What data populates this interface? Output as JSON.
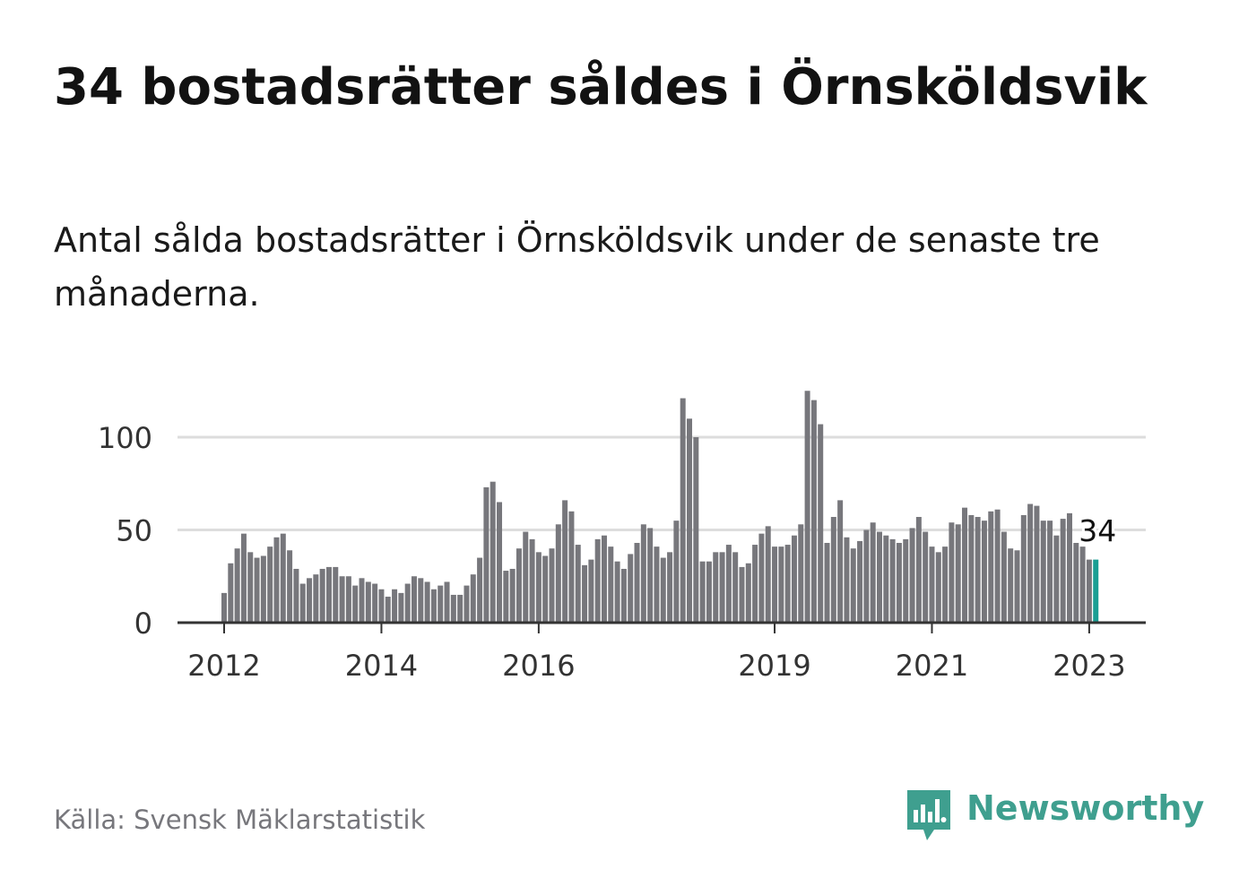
{
  "title": "34 bostadsrätter såldes i Örnsköldsvik",
  "subtitle": "Antal sålda bostadsrätter i Örnsköldsvik under de senaste tre månaderna.",
  "source": "Källa: Svensk Mäklarstatistik",
  "brand": {
    "name": "Newsworthy",
    "logo_icon": "newsworthy-bar-chart-speech-bubble-icon"
  },
  "colors": {
    "bar": "#77777c",
    "highlight": "#1a9e93",
    "grid": "#dddddd",
    "axis": "#333333",
    "brand": "#3f9f8f"
  },
  "chart_data": {
    "type": "bar",
    "x_unit": "month",
    "start": "2012-01",
    "end": "2023-02",
    "xlabel": "",
    "ylabel": "",
    "ylim": [
      0,
      120
    ],
    "yticks": [
      0,
      50,
      100
    ],
    "xticks": [
      "2012",
      "2014",
      "2016",
      "2019",
      "2021",
      "2023"
    ],
    "grid": true,
    "highlight_last": true,
    "last_label": "34",
    "values": [
      16,
      32,
      40,
      48,
      38,
      35,
      36,
      41,
      46,
      48,
      39,
      29,
      21,
      24,
      26,
      29,
      30,
      30,
      25,
      25,
      20,
      24,
      22,
      21,
      18,
      14,
      18,
      16,
      21,
      25,
      24,
      22,
      18,
      20,
      22,
      15,
      15,
      20,
      26,
      35,
      73,
      76,
      65,
      28,
      29,
      40,
      49,
      45,
      38,
      36,
      40,
      53,
      66,
      60,
      42,
      31,
      34,
      45,
      47,
      41,
      33,
      29,
      37,
      43,
      53,
      51,
      41,
      35,
      38,
      55,
      121,
      110,
      100,
      33,
      33,
      38,
      38,
      42,
      38,
      30,
      32,
      42,
      48,
      52,
      41,
      41,
      42,
      47,
      53,
      125,
      120,
      107,
      43,
      57,
      66,
      46,
      40,
      44,
      50,
      54,
      49,
      47,
      45,
      43,
      45,
      51,
      57,
      49,
      41,
      38,
      41,
      54,
      53,
      62,
      58,
      57,
      55,
      60,
      61,
      49,
      40,
      39,
      58,
      64,
      63,
      55,
      55,
      47,
      56,
      59,
      43,
      41,
      34,
      34
    ]
  }
}
